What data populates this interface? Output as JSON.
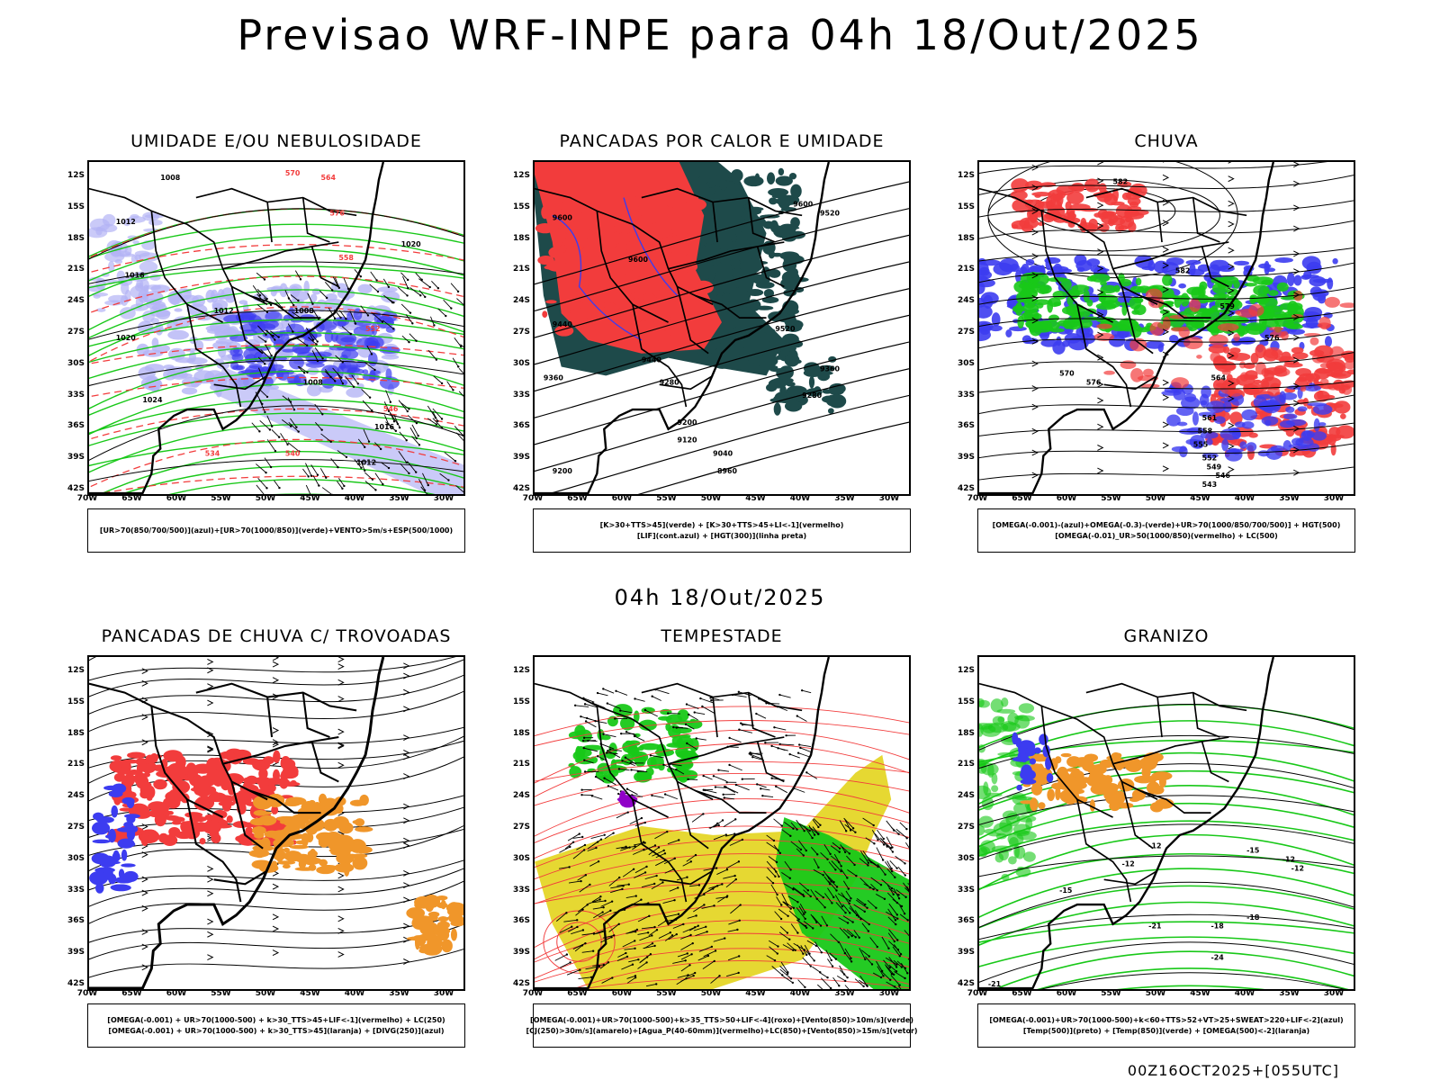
{
  "header": {
    "title": "Previsao WRF-INPE  para 04h 18/Out/2025",
    "subtitle": "04h 18/Out/2025",
    "footer": "00Z16OCT2025+[055UTC]"
  },
  "axes": {
    "lat_labels": [
      "12S",
      "15S",
      "18S",
      "21S",
      "24S",
      "27S",
      "30S",
      "33S",
      "36S",
      "39S",
      "42S"
    ],
    "lon_labels": [
      "70W",
      "65W",
      "60W",
      "55W",
      "50W",
      "45W",
      "40W",
      "35W",
      "30W"
    ]
  },
  "panels": [
    {
      "title": "UMIDADE E/OU NEBULOSIDADE",
      "legend": [
        "[UR>70(850/700/500)](azul)+[UR>70(1000/850)](verde)+VENTO>5m/s+ESP(500/1000)"
      ],
      "contour_labels": [
        "1008",
        "1012",
        "1016",
        "1020",
        "1024",
        "1012",
        "1008",
        "1008",
        "1012",
        "1016",
        "1020",
        "576",
        "570",
        "564",
        "558",
        "552",
        "546",
        "540",
        "534"
      ]
    },
    {
      "title": "PANCADAS POR CALOR E UMIDADE",
      "legend": [
        "[K>30+TTS>45](verde) + [K>30+TTS>45+LI<-1](vermelho)",
        "[LIF](cont.azul) + [HGT(300)](linha preta)"
      ],
      "contour_labels": [
        "9600",
        "9600",
        "9600",
        "9520",
        "9520",
        "9440",
        "9440",
        "9360",
        "9360",
        "9280",
        "9280",
        "9200",
        "9200",
        "9120",
        "9040",
        "8960"
      ]
    },
    {
      "title": "CHUVA",
      "legend": [
        "[OMEGA(-0.001)-(azul)+OMEGA(-0.3)-(verde)+UR>70(1000/850/700/500)] + HGT(500)",
        "[OMEGA(-0.01)_UR>50(1000/850)(vermelho) + LC(500)"
      ],
      "contour_labels": [
        "582",
        "582",
        "579",
        "576",
        "576",
        "570",
        "564",
        "561",
        "558",
        "555",
        "552",
        "549",
        "546",
        "543"
      ]
    },
    {
      "title": "PANCADAS DE CHUVA C/ TROVOADAS",
      "legend": [
        "[OMEGA(-0.001) + UR>70(1000-500) + k>30_TTS>45+LIF<-1](vermelho) + LC(250)",
        "[OMEGA(-0.001) + UR>70(1000-500) + k>30_TTS>45](laranja) + [DIVG(250)](azul)"
      ],
      "contour_labels": []
    },
    {
      "title": "TEMPESTADE",
      "legend": [
        "[OMEGA(-0.001)+UR>70(1000-500)+k>35_TTS>50+LIF<-4](roxo)+[Vento(850)>10m/s](verde)",
        "[CJ(250)>30m/s](amarelo)+[Agua_P(40-60mm)](vermelho)+LC(850)+[Vento(850)>15m/s](vetor)"
      ],
      "contour_labels": []
    },
    {
      "title": "GRANIZO",
      "legend": [
        "[OMEGA(-0.001)+UR>70(1000-500)+k<60+TTS>52+VT>25+SWEAT>220+LIF<-2](azul)",
        "[Temp(500)](preto) + [Temp(850)](verde) + [OMEGA(500)<-2](laranja)"
      ],
      "contour_labels": [
        "-12",
        "-12",
        "-12",
        "-15",
        "-15",
        "-18",
        "-18",
        "-21",
        "-21",
        "-24",
        "-12"
      ]
    }
  ],
  "colors": {
    "blue_humid": "#3c3cf0",
    "lavender": "#b4b4f5",
    "green": "#18c818",
    "red": "#f23c3c",
    "dark_teal": "#1e4a4a",
    "orange": "#f0962a",
    "yellow": "#e6d832",
    "purple": "#9000c8"
  }
}
